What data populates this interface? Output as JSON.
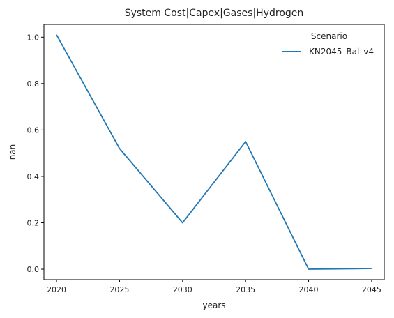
{
  "chart_data": {
    "type": "line",
    "title": "System Cost|Capex|Gases|Hydrogen",
    "xlabel": "years",
    "ylabel": "nan",
    "x": [
      2020,
      2025,
      2030,
      2035,
      2040,
      2045
    ],
    "xticks": [
      "2020",
      "2025",
      "2030",
      "2035",
      "2040",
      "2045"
    ],
    "yticks": [
      "0.0",
      "0.2",
      "0.4",
      "0.6",
      "0.8",
      "1.0"
    ],
    "xlim": [
      2019.0,
      2046.0
    ],
    "ylim": [
      -0.045,
      1.055
    ],
    "grid": false,
    "legend": {
      "title": "Scenario",
      "placement": "top-right"
    },
    "series": [
      {
        "name": "KN2045_Bal_v4",
        "color": "#1f77b4",
        "values": [
          1.01,
          0.52,
          0.2,
          0.55,
          0.0,
          0.003
        ]
      }
    ]
  }
}
